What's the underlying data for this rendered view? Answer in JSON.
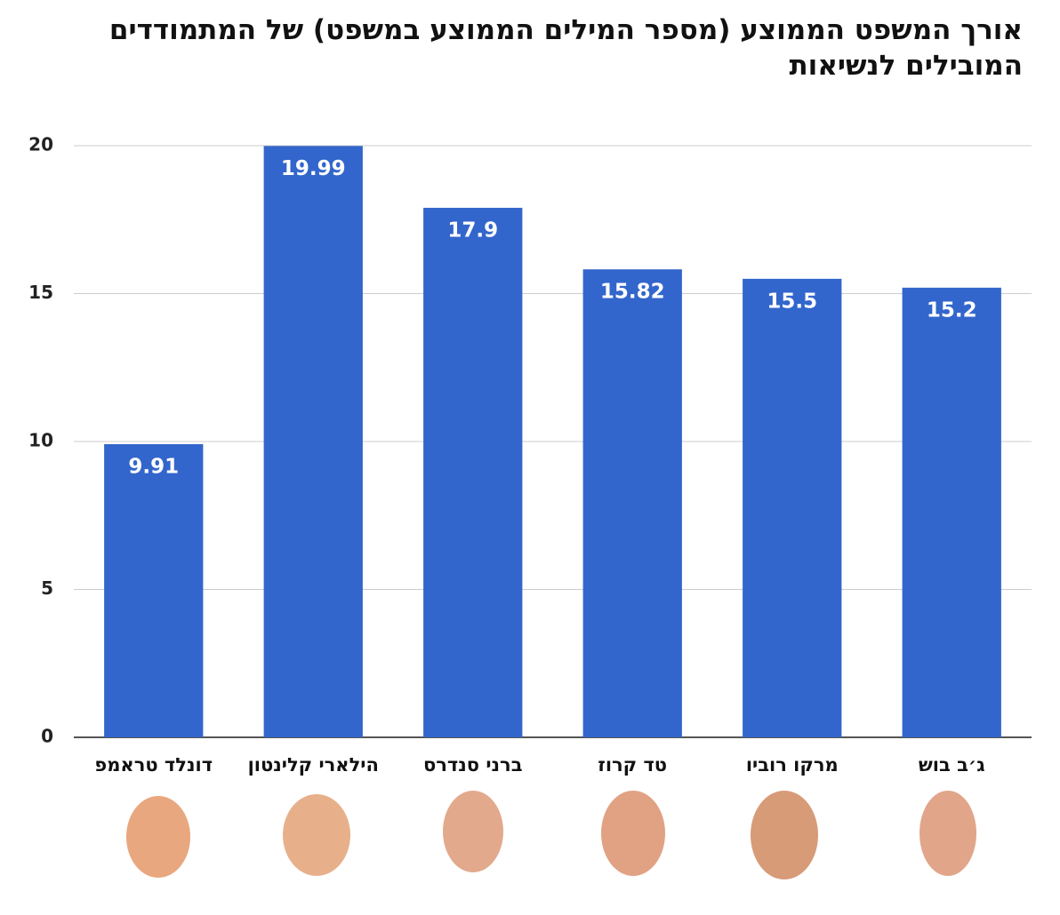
{
  "chart_data": {
    "type": "bar",
    "title": "אורך המשפט הממוצע (מספר המילים הממוצע במשפט) של המתמודדים המובילים לנשיאות",
    "categories": [
      "דונלד טראמפ",
      "הילארי קלינטון",
      "ברני סנדרס",
      "טד קרוז",
      "מרקו רוביו",
      "ג׳ב בוש"
    ],
    "values": [
      9.91,
      19.99,
      17.9,
      15.82,
      15.5,
      15.2
    ],
    "color": "#3366cc",
    "ylim": [
      0,
      20
    ],
    "yticks": [
      0,
      5,
      10,
      15,
      20
    ],
    "grid": true
  }
}
